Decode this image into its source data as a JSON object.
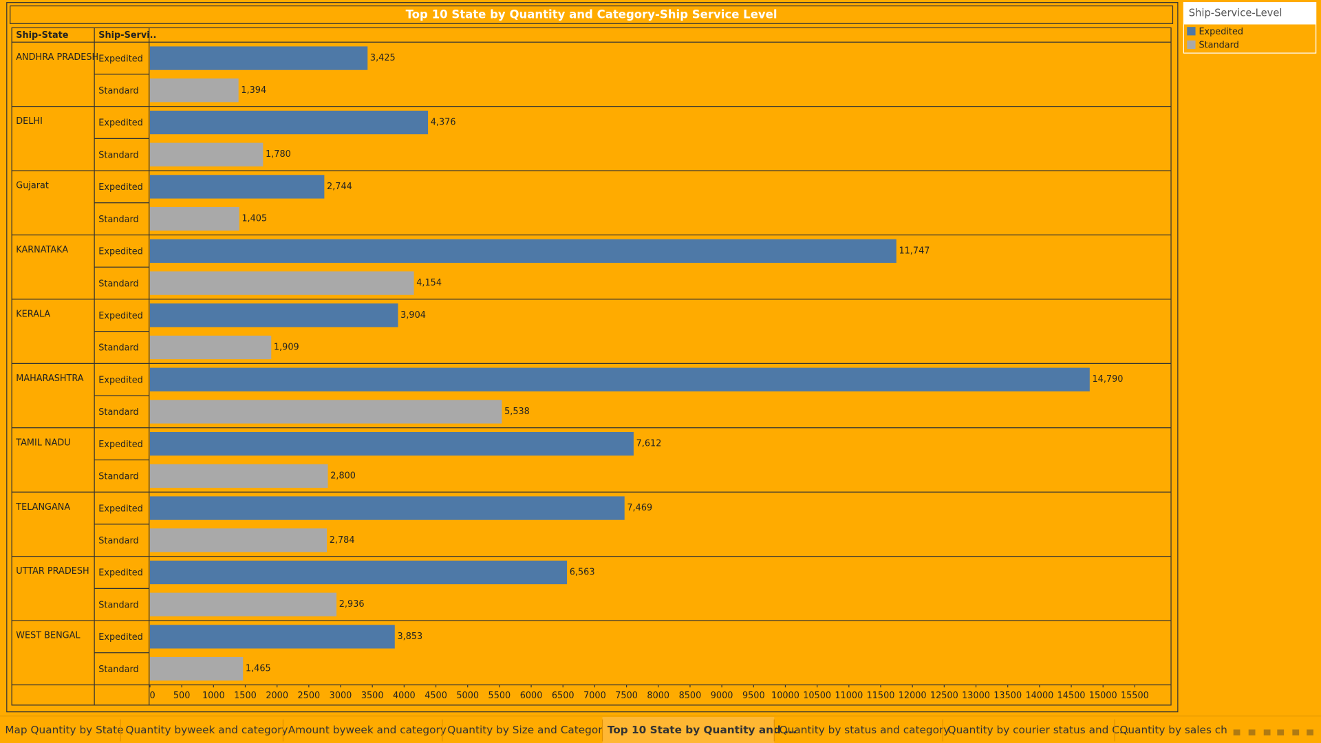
{
  "chart_data": {
    "type": "bar",
    "orientation": "horizontal",
    "title": "Top 10 State by Quantity and Category-Ship Service Level",
    "column_headers": [
      "Ship-State",
      "Ship-Servi.."
    ],
    "categories": [
      "ANDHRA PRADESH",
      "DELHI",
      "Gujarat",
      "KARNATAKA",
      "KERALA",
      "MAHARASHTRA",
      "TAMIL NADU",
      "TELANGANA",
      "UTTAR PRADESH",
      "WEST BENGAL"
    ],
    "legend_title": "Ship-Service-Level",
    "series": [
      {
        "name": "Expedited",
        "color": "#4e79a7",
        "values": [
          3425,
          4376,
          2744,
          11747,
          3904,
          14790,
          7612,
          7469,
          6563,
          3853
        ],
        "value_labels": [
          "3,425",
          "4,376",
          "2,744",
          "11,747",
          "3,904",
          "14,790",
          "7,612",
          "7,469",
          "6,563",
          "3,853"
        ]
      },
      {
        "name": "Standard",
        "color": "#a9a9a9",
        "values": [
          1394,
          1780,
          1405,
          4154,
          1909,
          5538,
          2800,
          2784,
          2936,
          1465
        ],
        "value_labels": [
          "1,394",
          "1,780",
          "1,405",
          "4,154",
          "1,909",
          "5,538",
          "2,800",
          "2,784",
          "2,936",
          "1,465"
        ]
      }
    ],
    "xlim": [
      0,
      16070
    ],
    "xticks": [
      0,
      500,
      1000,
      1500,
      2000,
      2500,
      3000,
      3500,
      4000,
      4500,
      5000,
      5500,
      6000,
      6500,
      7000,
      7500,
      8000,
      8500,
      9000,
      9500,
      10000,
      10500,
      11000,
      11500,
      12000,
      12500,
      13000,
      13500,
      14000,
      14500,
      15000,
      15500
    ]
  },
  "tabs": [
    "Map Quantity by State",
    "Quantity byweek and category",
    "Amount byweek and category",
    "Quantity by Size and Category",
    "Top 10 State by Quantity and ...",
    "Quantity by status and category",
    "Quantity by courier status and C...",
    "Quantity by sales cha"
  ],
  "active_tab": 4
}
